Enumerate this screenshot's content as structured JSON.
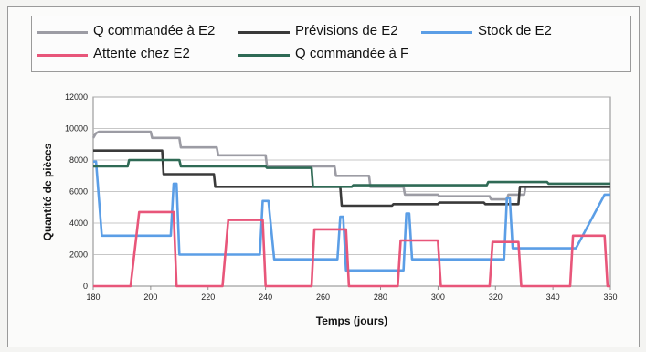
{
  "chart_data": {
    "type": "line",
    "title": "",
    "xlabel": "Temps (jours)",
    "ylabel": "Quantité de pièces",
    "xlim": [
      180,
      360
    ],
    "ylim": [
      0,
      12000
    ],
    "x_ticks": [
      180,
      200,
      220,
      240,
      260,
      280,
      300,
      320,
      340,
      360
    ],
    "y_ticks": [
      0,
      2000,
      4000,
      6000,
      8000,
      10000,
      12000
    ],
    "grid": true,
    "legend_position": "top",
    "series": [
      {
        "name": "Q commandée à E2",
        "color": "#9c9ca4",
        "x": [
          180,
          181,
          182,
          200,
          200.5,
          210,
          210.5,
          223,
          223.5,
          240,
          240.5,
          264,
          264.5,
          276,
          276.5,
          288,
          288.5,
          300,
          300.5,
          318,
          318.5,
          324,
          324.5,
          330,
          330.5,
          360
        ],
        "y": [
          9400,
          9700,
          9800,
          9800,
          9400,
          9400,
          8800,
          8800,
          8300,
          8300,
          7600,
          7600,
          7000,
          7000,
          6300,
          6300,
          5800,
          5800,
          5700,
          5700,
          5500,
          5500,
          5800,
          5800,
          6300,
          6300
        ]
      },
      {
        "name": "Prévisions de E2",
        "color": "#3a3a3a",
        "x": [
          180,
          204,
          204.5,
          222,
          222.5,
          242,
          242.5,
          266,
          266.5,
          284,
          284.5,
          300,
          300.5,
          316,
          316.5,
          328,
          328.5,
          360
        ],
        "y": [
          8600,
          8600,
          7100,
          7100,
          6300,
          6300,
          6300,
          6300,
          5100,
          5100,
          5200,
          5200,
          5300,
          5300,
          5200,
          5200,
          6300,
          6300
        ]
      },
      {
        "name": "Stock de E2",
        "color": "#5b9ee6",
        "x": [
          180,
          181,
          183,
          196,
          197,
          199,
          203,
          205,
          207,
          208,
          209,
          210,
          211,
          238,
          239,
          240,
          241,
          243,
          244,
          264,
          265,
          266,
          267,
          268,
          269,
          270,
          271,
          287,
          288,
          289,
          290,
          291,
          292,
          293,
          294,
          322,
          323,
          324,
          325,
          326,
          327,
          328,
          329,
          330,
          346,
          347,
          348,
          358,
          359,
          360
        ],
        "y": [
          7900,
          7900,
          3200,
          3200,
          3200,
          3200,
          3200,
          3200,
          3200,
          6500,
          6500,
          2000,
          2000,
          2000,
          5400,
          5400,
          5400,
          1700,
          1700,
          1700,
          1700,
          4400,
          4400,
          1000,
          1000,
          1000,
          1000,
          1000,
          1000,
          4600,
          4600,
          1700,
          1700,
          1700,
          1700,
          1700,
          1700,
          5600,
          5600,
          2400,
          2400,
          2400,
          2400,
          2400,
          2400,
          2400,
          2400,
          5800,
          5800,
          5800
        ]
      },
      {
        "name": "Attente chez E2",
        "color": "#e8567a",
        "x": [
          180,
          192,
          193,
          196,
          208,
          209,
          210,
          225,
          227,
          239,
          240,
          241,
          256,
          257,
          258,
          268,
          269,
          270,
          286,
          287,
          288,
          300,
          301,
          302,
          318,
          319,
          320,
          328,
          329,
          330,
          346,
          347,
          348,
          358,
          359,
          360
        ],
        "y": [
          0,
          0,
          0,
          4700,
          4700,
          0,
          0,
          0,
          4200,
          4200,
          0,
          0,
          0,
          3600,
          3600,
          3600,
          0,
          0,
          0,
          2900,
          2900,
          2900,
          0,
          0,
          0,
          2800,
          2800,
          2800,
          0,
          0,
          0,
          3200,
          3200,
          3200,
          0,
          0
        ]
      },
      {
        "name": "Q commandée à F",
        "color": "#2f6a55",
        "x": [
          180,
          192,
          192.5,
          210,
          210.5,
          240,
          240.5,
          256,
          256.5,
          270,
          270.5,
          298,
          298.5,
          317,
          317.5,
          338,
          338.5,
          360
        ],
        "y": [
          7600,
          7600,
          8000,
          8000,
          7600,
          7600,
          7500,
          7500,
          6300,
          6300,
          6400,
          6400,
          6400,
          6400,
          6600,
          6600,
          6500,
          6500
        ]
      }
    ]
  }
}
